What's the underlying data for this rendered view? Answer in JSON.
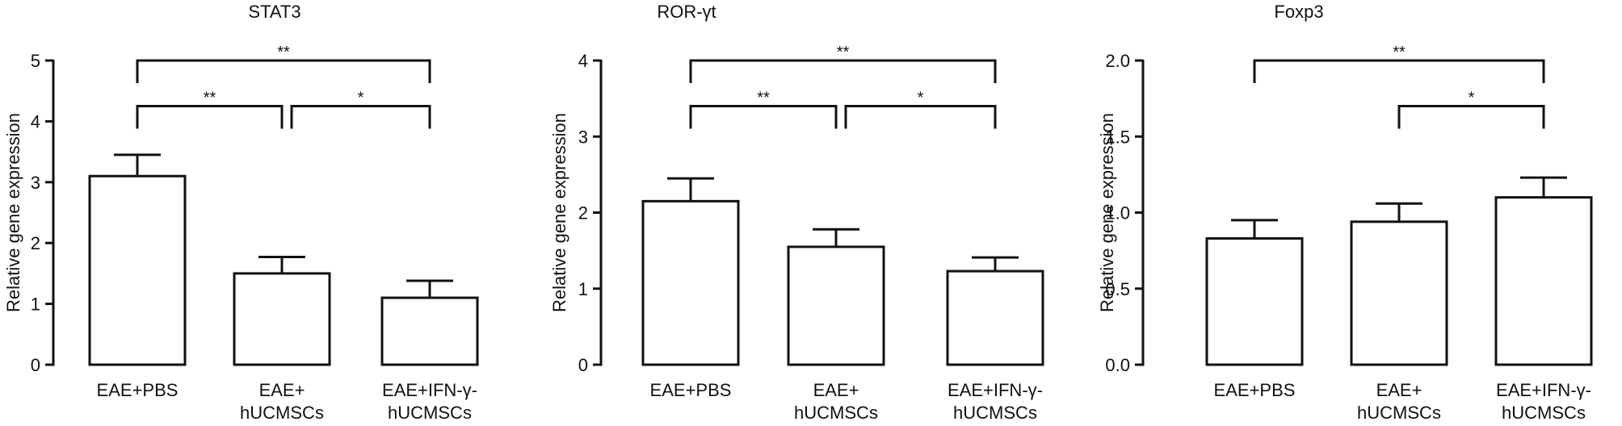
{
  "chart_data": [
    {
      "type": "bar",
      "title": "STAT3",
      "ylabel": "Relative gene expression",
      "xlabel": "",
      "ylim": [
        0,
        5
      ],
      "yticks": [
        "0",
        "1",
        "2",
        "3",
        "4",
        "5"
      ],
      "categories": [
        [
          "EAE+PBS"
        ],
        [
          "EAE+",
          "hUCMSCs"
        ],
        [
          "EAE+IFN-γ-",
          "hUCMSCs"
        ]
      ],
      "values": [
        3.1,
        1.5,
        1.1
      ],
      "errors": [
        0.35,
        0.27,
        0.28
      ],
      "significance": [
        {
          "from": 0,
          "to": 2,
          "y": 5.0,
          "label": "**"
        },
        {
          "from": 0,
          "to": 1,
          "y": 4.25,
          "label": "**"
        },
        {
          "from": 1,
          "to": 2,
          "y": 4.25,
          "label": "*"
        }
      ]
    },
    {
      "type": "bar",
      "title": "ROR-γt",
      "ylabel": "Relative gene expression",
      "xlabel": "",
      "ylim": [
        0,
        4
      ],
      "yticks": [
        "0",
        "1",
        "2",
        "3",
        "4"
      ],
      "categories": [
        [
          "EAE+PBS"
        ],
        [
          "EAE+",
          "hUCMSCs"
        ],
        [
          "EAE+IFN-γ-",
          "hUCMSCs"
        ]
      ],
      "values": [
        2.15,
        1.55,
        1.23
      ],
      "errors": [
        0.3,
        0.23,
        0.18
      ],
      "significance": [
        {
          "from": 0,
          "to": 2,
          "y": 4.0,
          "label": "**"
        },
        {
          "from": 0,
          "to": 1,
          "y": 3.4,
          "label": "**"
        },
        {
          "from": 1,
          "to": 2,
          "y": 3.4,
          "label": "*"
        }
      ]
    },
    {
      "type": "bar",
      "title": "Foxp3",
      "ylabel": "Relative gene expression",
      "xlabel": "",
      "ylim": [
        0,
        2.0
      ],
      "yticks": [
        "0.0",
        "0.5",
        "1.0",
        "1.5",
        "2.0"
      ],
      "categories": [
        [
          "EAE+PBS"
        ],
        [
          "EAE+",
          "hUCMSCs"
        ],
        [
          "EAE+IFN-γ-",
          "hUCMSCs"
        ]
      ],
      "values": [
        0.83,
        0.94,
        1.1
      ],
      "errors": [
        0.12,
        0.12,
        0.13
      ],
      "significance": [
        {
          "from": 0,
          "to": 2,
          "y": 2.0,
          "label": "**"
        },
        {
          "from": 1,
          "to": 2,
          "y": 1.7,
          "label": "*"
        }
      ]
    }
  ]
}
